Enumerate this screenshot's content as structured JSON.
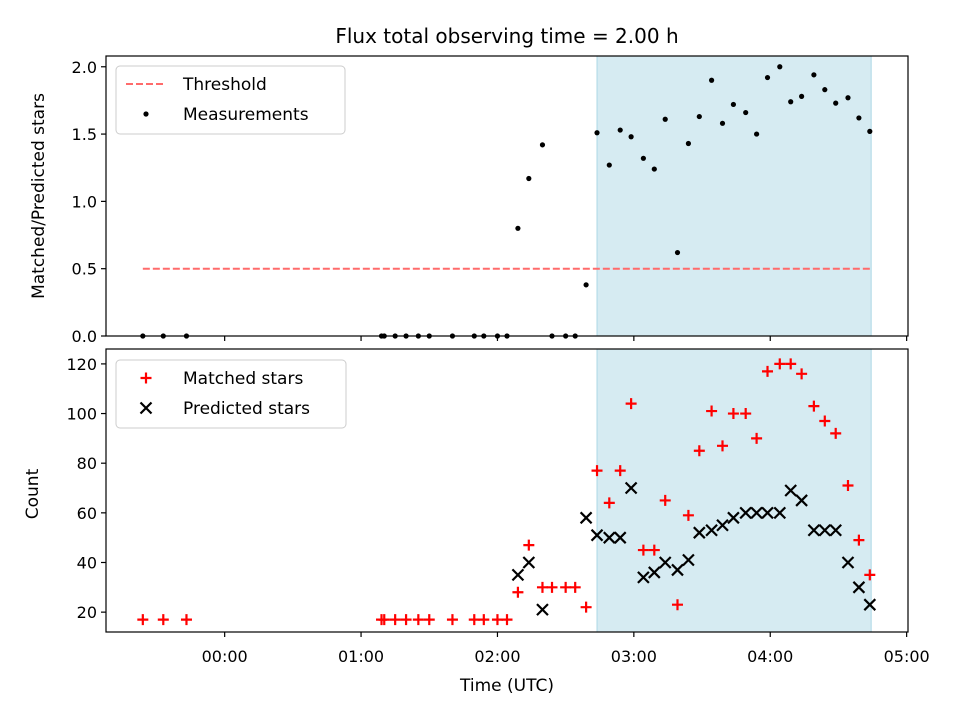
{
  "chart_data": [
    {
      "type": "scatter",
      "title": "Flux total observing time = 2.00 h",
      "xlabel": "",
      "ylabel": "Matched/Predicted stars",
      "ylim": [
        0,
        2.08
      ],
      "yticks": [
        0.0,
        0.5,
        1.0,
        1.5,
        2.0
      ],
      "ytick_labels": [
        "0.0",
        "0.5",
        "1.0",
        "1.5",
        "2.0"
      ],
      "legend_position": "top-left",
      "shaded_region": {
        "x_start": 2.73,
        "x_end": 4.74,
        "color": "#add8e6"
      },
      "series": [
        {
          "name": "Threshold",
          "style": "dashed-line",
          "color": "#ff6b6b",
          "x": [
            -0.6,
            4.74
          ],
          "y": [
            0.5,
            0.5
          ]
        },
        {
          "name": "Measurements",
          "style": "dot",
          "color": "#000000",
          "x": [
            -0.6,
            -0.45,
            -0.28,
            1.15,
            1.17,
            1.25,
            1.33,
            1.42,
            1.5,
            1.67,
            1.83,
            1.9,
            2.0,
            2.07,
            2.15,
            2.23,
            2.33,
            2.4,
            2.5,
            2.57,
            2.65,
            2.73,
            2.82,
            2.9,
            2.98,
            3.07,
            3.15,
            3.23,
            3.32,
            3.4,
            3.48,
            3.57,
            3.65,
            3.73,
            3.82,
            3.9,
            3.98,
            4.07,
            4.15,
            4.23,
            4.32,
            4.4,
            4.48,
            4.57,
            4.65,
            4.73
          ],
          "y": [
            0,
            0,
            0,
            0,
            0,
            0,
            0,
            0,
            0,
            0,
            0,
            0,
            0,
            0,
            0.8,
            1.17,
            1.42,
            0,
            0,
            0,
            0.38,
            1.51,
            1.27,
            1.53,
            1.48,
            1.32,
            1.24,
            1.61,
            0.62,
            1.43,
            1.63,
            1.9,
            1.58,
            1.72,
            1.66,
            1.5,
            1.92,
            2.0,
            1.74,
            1.78,
            1.94,
            1.83,
            1.73,
            1.77,
            1.62,
            1.52
          ]
        }
      ]
    },
    {
      "type": "scatter",
      "title": "",
      "xlabel": "Time (UTC)",
      "ylabel": "Count",
      "xlim": [
        -0.87,
        5.01
      ],
      "ylim": [
        12,
        126
      ],
      "xticks": [
        0,
        1,
        2,
        3,
        4,
        5
      ],
      "xtick_labels": [
        "00:00",
        "01:00",
        "02:00",
        "03:00",
        "04:00",
        "05:00"
      ],
      "yticks": [
        20,
        40,
        60,
        80,
        100,
        120
      ],
      "ytick_labels": [
        "20",
        "40",
        "60",
        "80",
        "100",
        "120"
      ],
      "legend_position": "top-left",
      "shaded_region": {
        "x_start": 2.73,
        "x_end": 4.74,
        "color": "#add8e6"
      },
      "series": [
        {
          "name": "Matched stars",
          "style": "plus",
          "color": "#ff0000",
          "x": [
            -0.6,
            -0.45,
            -0.28,
            1.15,
            1.17,
            1.25,
            1.33,
            1.42,
            1.5,
            1.67,
            1.83,
            1.9,
            2.0,
            2.07,
            2.15,
            2.23,
            2.33,
            2.4,
            2.5,
            2.57,
            2.65,
            2.73,
            2.82,
            2.9,
            2.98,
            3.07,
            3.15,
            3.23,
            3.32,
            3.4,
            3.48,
            3.57,
            3.65,
            3.73,
            3.82,
            3.9,
            3.98,
            4.07,
            4.15,
            4.23,
            4.32,
            4.4,
            4.48,
            4.57,
            4.65,
            4.73
          ],
          "y": [
            17,
            17,
            17,
            17,
            17,
            17,
            17,
            17,
            17,
            17,
            17,
            17,
            17,
            17,
            28,
            47,
            30,
            30,
            30,
            30,
            22,
            77,
            64,
            77,
            104,
            45,
            45,
            65,
            23,
            59,
            85,
            101,
            87,
            100,
            100,
            90,
            117,
            120,
            120,
            116,
            103,
            97,
            92,
            71,
            49,
            35
          ]
        },
        {
          "name": "Predicted stars",
          "style": "x",
          "color": "#000000",
          "x": [
            2.15,
            2.23,
            2.33,
            2.65,
            2.73,
            2.82,
            2.9,
            2.98,
            3.07,
            3.15,
            3.23,
            3.32,
            3.4,
            3.48,
            3.57,
            3.65,
            3.73,
            3.82,
            3.9,
            3.98,
            4.07,
            4.15,
            4.23,
            4.32,
            4.4,
            4.48,
            4.57,
            4.65,
            4.73
          ],
          "y": [
            35,
            40,
            21,
            58,
            51,
            50,
            50,
            70,
            34,
            36,
            40,
            37,
            41,
            52,
            53,
            55,
            58,
            60,
            60,
            60,
            60,
            69,
            65,
            53,
            53,
            53,
            40,
            30,
            23
          ]
        }
      ]
    }
  ]
}
